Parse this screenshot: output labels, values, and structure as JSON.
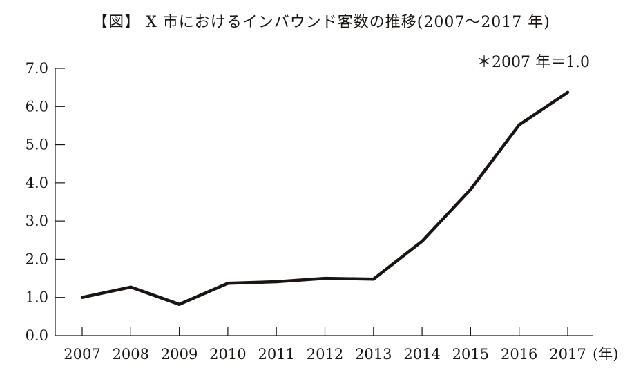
{
  "chart_data": {
    "type": "line",
    "title": "【図】 X 市におけるインバウンド客数の推移(2007〜2017 年)",
    "annotation": "＊2007 年＝1.0",
    "xlabel": "(年)",
    "ylabel": "",
    "categories": [
      "2007",
      "2008",
      "2009",
      "2010",
      "2011",
      "2012",
      "2013",
      "2014",
      "2015",
      "2016",
      "2017"
    ],
    "values": [
      1.0,
      1.27,
      0.82,
      1.37,
      1.41,
      1.5,
      1.48,
      2.47,
      3.83,
      5.52,
      6.37
    ],
    "ylim": [
      0,
      7
    ],
    "yticks": [
      "0.0",
      "1.0",
      "2.0",
      "3.0",
      "4.0",
      "5.0",
      "6.0",
      "7.0"
    ],
    "grid": false,
    "line_color": "#1a1513"
  }
}
